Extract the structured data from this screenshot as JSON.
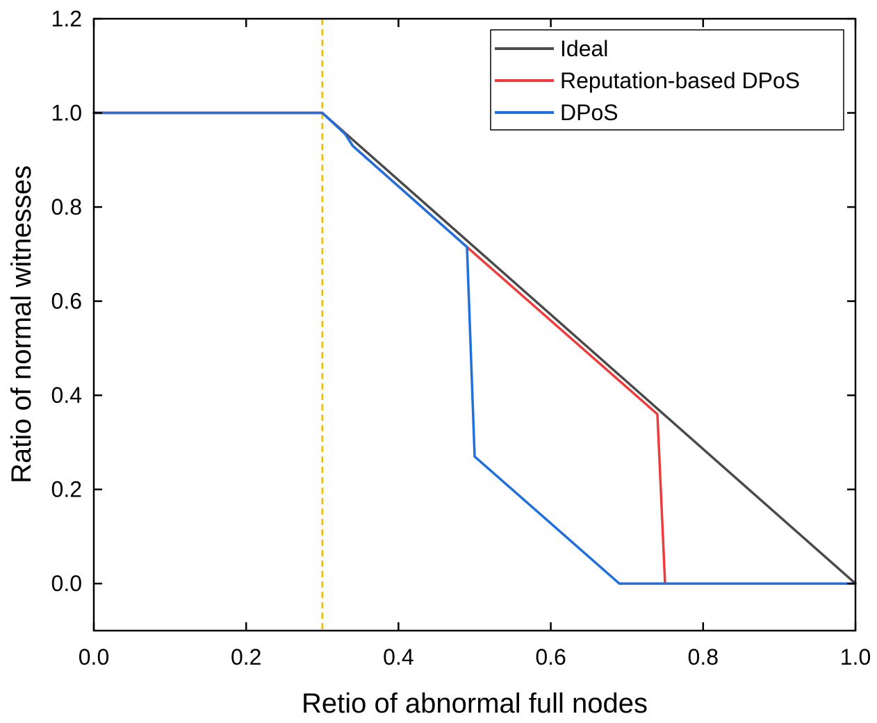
{
  "chart_data": {
    "type": "line",
    "title": "",
    "xlabel": "Retio of abnormal full nodes",
    "ylabel": "Ratio of normal witnesses",
    "xlim": [
      0.0,
      1.0
    ],
    "ylim": [
      -0.1,
      1.2
    ],
    "xticks": [
      "0.0",
      "0.2",
      "0.4",
      "0.6",
      "0.8",
      "1.0"
    ],
    "yticks": [
      "0.0",
      "0.2",
      "0.4",
      "0.6",
      "0.8",
      "1.0",
      "1.2"
    ],
    "xtick_values": [
      0.0,
      0.2,
      0.4,
      0.6,
      0.8,
      1.0
    ],
    "ytick_values": [
      0.0,
      0.2,
      0.4,
      0.6,
      0.8,
      1.0,
      1.2
    ],
    "grid": false,
    "legend_position": "top-right",
    "reference_line": {
      "type": "vertical",
      "x": 0.3,
      "style": "dashed",
      "color": "#f5b800"
    },
    "series": [
      {
        "name": "Ideal",
        "color": "#4a4a4a",
        "x": [
          0.0,
          0.3,
          1.0
        ],
        "y": [
          1.0,
          1.0,
          0.0
        ]
      },
      {
        "name": "Reputation-based DPoS",
        "color": "#ee3b3b",
        "x": [
          0.0,
          0.3,
          0.33,
          0.34,
          0.49,
          0.74,
          0.75,
          1.0
        ],
        "y": [
          1.0,
          1.0,
          0.955,
          0.93,
          0.715,
          0.36,
          0.0,
          0.0
        ]
      },
      {
        "name": "DPoS",
        "color": "#1f6fdd",
        "x": [
          0.0,
          0.3,
          0.33,
          0.34,
          0.49,
          0.5,
          0.69,
          1.0
        ],
        "y": [
          1.0,
          1.0,
          0.955,
          0.93,
          0.715,
          0.27,
          0.0,
          0.0
        ]
      }
    ]
  }
}
